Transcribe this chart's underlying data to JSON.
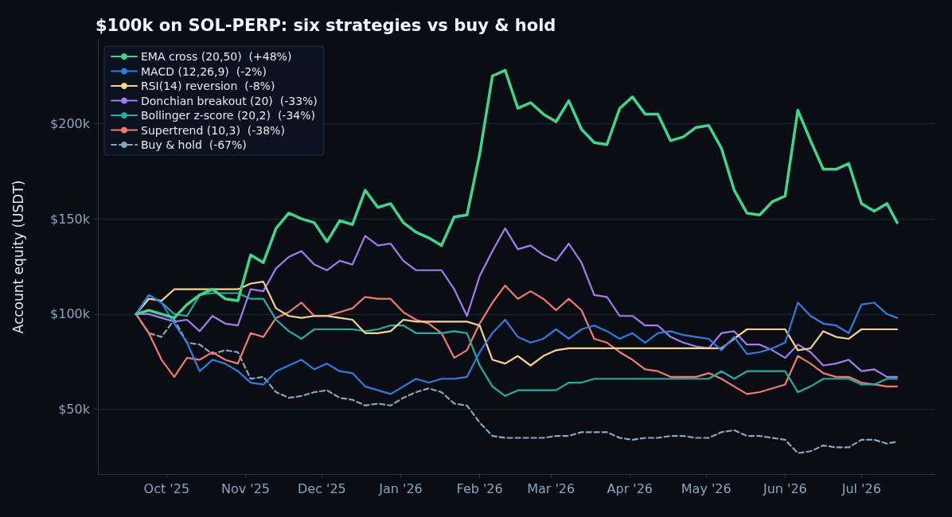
{
  "chart_data": {
    "type": "line",
    "title": "$100k on SOL-PERP: six strategies vs buy & hold",
    "ylabel": "Account equity (USDT)",
    "x": [
      "2025-09-19",
      "2025-09-24",
      "2025-09-29",
      "2025-10-04",
      "2025-10-09",
      "2025-10-14",
      "2025-10-19",
      "2025-10-24",
      "2025-10-29",
      "2025-11-03",
      "2025-11-08",
      "2025-11-13",
      "2025-11-18",
      "2025-11-23",
      "2025-11-28",
      "2025-12-03",
      "2025-12-08",
      "2025-12-13",
      "2025-12-18",
      "2025-12-23",
      "2025-12-28",
      "2026-01-02",
      "2026-01-07",
      "2026-01-12",
      "2026-01-17",
      "2026-01-22",
      "2026-01-27",
      "2026-02-01",
      "2026-02-06",
      "2026-02-11",
      "2026-02-16",
      "2026-02-21",
      "2026-02-26",
      "2026-03-03",
      "2026-03-08",
      "2026-03-13",
      "2026-03-18",
      "2026-03-23",
      "2026-03-28",
      "2026-04-02",
      "2026-04-07",
      "2026-04-12",
      "2026-04-17",
      "2026-04-22",
      "2026-04-27",
      "2026-05-02",
      "2026-05-07",
      "2026-05-12",
      "2026-05-17",
      "2026-05-22",
      "2026-05-27",
      "2026-06-01",
      "2026-06-06",
      "2026-06-11",
      "2026-06-16",
      "2026-06-21",
      "2026-06-26",
      "2026-07-01",
      "2026-07-06",
      "2026-07-11",
      "2026-07-15"
    ],
    "series": [
      {
        "name": "EMA cross (20,50)  (+48%)",
        "color": "#3dd68c",
        "values": [
          100000,
          102000,
          100000,
          98000,
          105000,
          110000,
          113000,
          108000,
          107000,
          131000,
          127000,
          145000,
          153000,
          150000,
          148000,
          138000,
          149000,
          147000,
          165000,
          156000,
          158000,
          148000,
          143000,
          140000,
          136000,
          151000,
          152000,
          184000,
          225000,
          228000,
          208000,
          211000,
          205000,
          201000,
          212000,
          197000,
          190000,
          189000,
          208000,
          214000,
          205000,
          205000,
          191000,
          193000,
          198000,
          199000,
          187000,
          165000,
          153000,
          152000,
          159000,
          162000,
          207000,
          191000,
          176000,
          176000,
          179000,
          158000,
          154000,
          158000,
          148000
        ]
      },
      {
        "name": "MACD (12,26,9)  (-2%)",
        "color": "#2f7de1",
        "values": [
          100000,
          110000,
          106000,
          95000,
          85000,
          70000,
          76000,
          74000,
          70000,
          64000,
          63000,
          70000,
          73000,
          76000,
          71000,
          74000,
          70000,
          69000,
          62000,
          60000,
          58000,
          62000,
          66000,
          64000,
          66000,
          66000,
          67000,
          80000,
          90000,
          97000,
          88000,
          85000,
          87000,
          92000,
          87000,
          92000,
          94000,
          91000,
          87000,
          90000,
          85000,
          90000,
          91000,
          89000,
          88000,
          87000,
          81000,
          88000,
          79000,
          80000,
          82000,
          85000,
          106000,
          99000,
          95000,
          94000,
          90000,
          105000,
          106000,
          100000,
          98000
        ]
      },
      {
        "name": "RSI(14) reversion  (-8%)",
        "color": "#f5d38a",
        "values": [
          100000,
          108000,
          107000,
          113000,
          113000,
          113000,
          113000,
          113000,
          113000,
          116000,
          117000,
          103000,
          99000,
          98000,
          99000,
          99000,
          98000,
          97000,
          90000,
          90000,
          91000,
          97000,
          96000,
          96000,
          96000,
          96000,
          96000,
          94000,
          76000,
          74000,
          78000,
          73000,
          78000,
          81000,
          82000,
          82000,
          82000,
          82000,
          82000,
          82000,
          82000,
          82000,
          82000,
          82000,
          82000,
          82000,
          82000,
          87000,
          92000,
          92000,
          92000,
          92000,
          81000,
          82000,
          91000,
          88000,
          87000,
          92000,
          92000,
          92000,
          92000
        ]
      },
      {
        "name": "Donchian breakout (20)  (-33%)",
        "color": "#a07ef0",
        "values": [
          100000,
          100000,
          98000,
          96000,
          97000,
          91000,
          99000,
          95000,
          94000,
          113000,
          112000,
          124000,
          130000,
          133000,
          126000,
          123000,
          128000,
          126000,
          141000,
          136000,
          137000,
          128000,
          123000,
          123000,
          123000,
          113000,
          99000,
          120000,
          133000,
          145000,
          134000,
          136000,
          131000,
          128000,
          137000,
          127000,
          110000,
          109000,
          99000,
          99000,
          94000,
          94000,
          88000,
          85000,
          83000,
          82000,
          90000,
          91000,
          84000,
          84000,
          81000,
          77000,
          84000,
          80000,
          73000,
          74000,
          76000,
          70000,
          71000,
          67000,
          67000
        ]
      },
      {
        "name": "Bollinger z-score (20,2)  (-34%)",
        "color": "#20b0a0",
        "values": [
          100000,
          110000,
          106000,
          100000,
          99000,
          110000,
          111000,
          111000,
          111000,
          108000,
          108000,
          97000,
          91000,
          87000,
          92000,
          92000,
          92000,
          92000,
          91000,
          92000,
          94000,
          94000,
          90000,
          90000,
          90000,
          91000,
          90000,
          73000,
          62000,
          57000,
          60000,
          60000,
          60000,
          60000,
          64000,
          64000,
          66000,
          66000,
          66000,
          66000,
          66000,
          66000,
          66000,
          66000,
          66000,
          66000,
          70000,
          66000,
          70000,
          70000,
          70000,
          70000,
          59000,
          62000,
          66000,
          66000,
          66000,
          63000,
          63000,
          66000,
          66000
        ]
      },
      {
        "name": "Supertrend (10,3)  (-38%)",
        "color": "#f07a70",
        "values": [
          100000,
          90000,
          76000,
          67000,
          77000,
          76000,
          80000,
          76000,
          74000,
          90000,
          88000,
          98000,
          101000,
          106000,
          99000,
          99000,
          101000,
          103000,
          109000,
          108000,
          108000,
          101000,
          97000,
          95000,
          90000,
          77000,
          81000,
          95000,
          106000,
          115000,
          108000,
          112000,
          108000,
          102000,
          108000,
          102000,
          87000,
          85000,
          80000,
          76000,
          71000,
          70000,
          67000,
          67000,
          67000,
          69000,
          66000,
          62000,
          58000,
          59000,
          61000,
          63000,
          78000,
          74000,
          69000,
          67000,
          67000,
          64000,
          63000,
          62000,
          62000
        ]
      },
      {
        "name": "Buy & hold  (-67%)",
        "color": "#8aa6bd",
        "line_style": "dashed",
        "values": [
          100000,
          90000,
          88000,
          97000,
          85000,
          84000,
          79000,
          81000,
          80000,
          66000,
          67000,
          59000,
          56000,
          57000,
          59000,
          60000,
          56000,
          55000,
          52000,
          53000,
          52000,
          56000,
          59000,
          61000,
          59000,
          53000,
          52000,
          43000,
          36000,
          35000,
          35000,
          35000,
          35000,
          36000,
          36000,
          38000,
          38000,
          38000,
          35000,
          34000,
          35000,
          35000,
          36000,
          36000,
          35000,
          35000,
          38000,
          39000,
          36000,
          36000,
          35000,
          34000,
          27000,
          28000,
          31000,
          30000,
          30000,
          34000,
          34000,
          32000,
          33000
        ]
      }
    ],
    "xlim": [
      "2025-09-04",
      "2026-07-30"
    ],
    "xticks": [
      {
        "value": "2025-10-01",
        "label": "Oct '25"
      },
      {
        "value": "2025-11-01",
        "label": "Nov '25"
      },
      {
        "value": "2025-12-01",
        "label": "Dec '25"
      },
      {
        "value": "2026-01-01",
        "label": "Jan '26"
      },
      {
        "value": "2026-02-01",
        "label": "Feb '26"
      },
      {
        "value": "2026-03-01",
        "label": "Mar '26"
      },
      {
        "value": "2026-04-01",
        "label": "Apr '26"
      },
      {
        "value": "2026-05-01",
        "label": "May '26"
      },
      {
        "value": "2026-06-01",
        "label": "Jun '26"
      },
      {
        "value": "2026-07-01",
        "label": "Jul '26"
      }
    ],
    "ylim": [
      16000,
      244000
    ],
    "yticks": [
      {
        "value": 50000,
        "label": "$50k"
      },
      {
        "value": 100000,
        "label": "$100k"
      },
      {
        "value": 150000,
        "label": "$150k"
      },
      {
        "value": 200000,
        "label": "$200k"
      }
    ],
    "grid": "y",
    "legend": "top left"
  }
}
